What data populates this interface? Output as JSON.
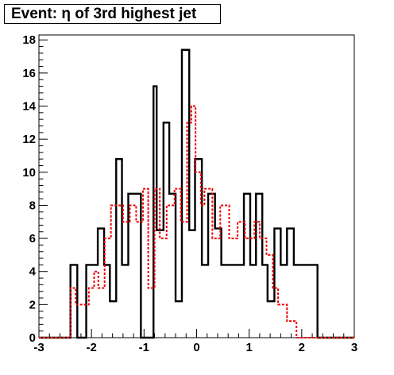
{
  "chart_data": {
    "type": "histogram",
    "title": "Event: η of 3rd highest jet",
    "xlabel": "",
    "ylabel": "",
    "xlim": [
      -3,
      3
    ],
    "ylim": [
      0,
      18.3
    ],
    "x_ticks": [
      -3,
      -2,
      -1,
      0,
      1,
      2,
      3
    ],
    "y_ticks": [
      0,
      2,
      4,
      6,
      8,
      10,
      12,
      14,
      16,
      18
    ],
    "bin_edges": [
      -3.0,
      -2.4,
      -2.27,
      -2.1,
      -1.88,
      -1.76,
      -1.65,
      -1.45,
      -1.3,
      -1.15,
      -1.0,
      -0.87,
      -0.76,
      -0.63,
      -0.45,
      -0.25,
      -0.03,
      0.1,
      0.35,
      0.55,
      1.0,
      1.3,
      1.65,
      1.9,
      2.3,
      3.0
    ],
    "series": [
      {
        "style": "solid",
        "color": "#000000",
        "edges": [
          -3.0,
          -2.4,
          -2.27,
          -2.1,
          -1.88,
          -1.76,
          -1.65,
          -1.53,
          -1.42,
          -1.3,
          -1.18,
          -1.06,
          -0.82,
          -0.76,
          -0.63,
          -0.52,
          -0.4,
          -0.28,
          -0.14,
          -0.03,
          0.1,
          0.22,
          0.35,
          0.47,
          0.55,
          0.9,
          1.02,
          1.13,
          1.25,
          1.35,
          1.48,
          1.6,
          1.72,
          1.85,
          2.3,
          3.0
        ],
        "values": [
          0,
          4.4,
          0,
          4.4,
          6.6,
          4.4,
          2.2,
          10.8,
          4.4,
          8.7,
          8.7,
          0,
          15.2,
          6.5,
          13.0,
          8.7,
          2.2,
          17.4,
          6.5,
          10.8,
          4.4,
          8.7,
          6.6,
          4.4,
          4.4,
          8.7,
          4.4,
          8.7,
          4.4,
          2.2,
          6.6,
          4.4,
          6.6,
          4.4,
          0
        ]
      },
      {
        "style": "dashed",
        "color": "#ee0000",
        "edges": [
          -3.0,
          -2.4,
          -2.3,
          -2.05,
          -1.95,
          -1.87,
          -1.75,
          -1.63,
          -1.4,
          -1.27,
          -1.15,
          -1.02,
          -0.92,
          -0.8,
          -0.7,
          -0.57,
          -0.42,
          -0.3,
          -0.18,
          -0.1,
          -0.02,
          0.08,
          0.15,
          0.3,
          0.45,
          0.62,
          0.78,
          0.92,
          1.1,
          1.2,
          1.33,
          1.45,
          1.55,
          1.72,
          1.9,
          2.1,
          2.3,
          3.0
        ],
        "values": [
          0,
          3.0,
          2.0,
          3.0,
          4.0,
          3.0,
          6.0,
          8.0,
          7.0,
          8.0,
          7.0,
          9.0,
          3.0,
          9.0,
          6.0,
          8.0,
          9.0,
          7.0,
          13.0,
          14.0,
          10.0,
          8.0,
          9.0,
          6.0,
          8.0,
          6.0,
          7.0,
          6.0,
          7.0,
          6.0,
          5.0,
          3.0,
          2.0,
          1.0,
          0,
          0,
          0
        ]
      }
    ]
  }
}
